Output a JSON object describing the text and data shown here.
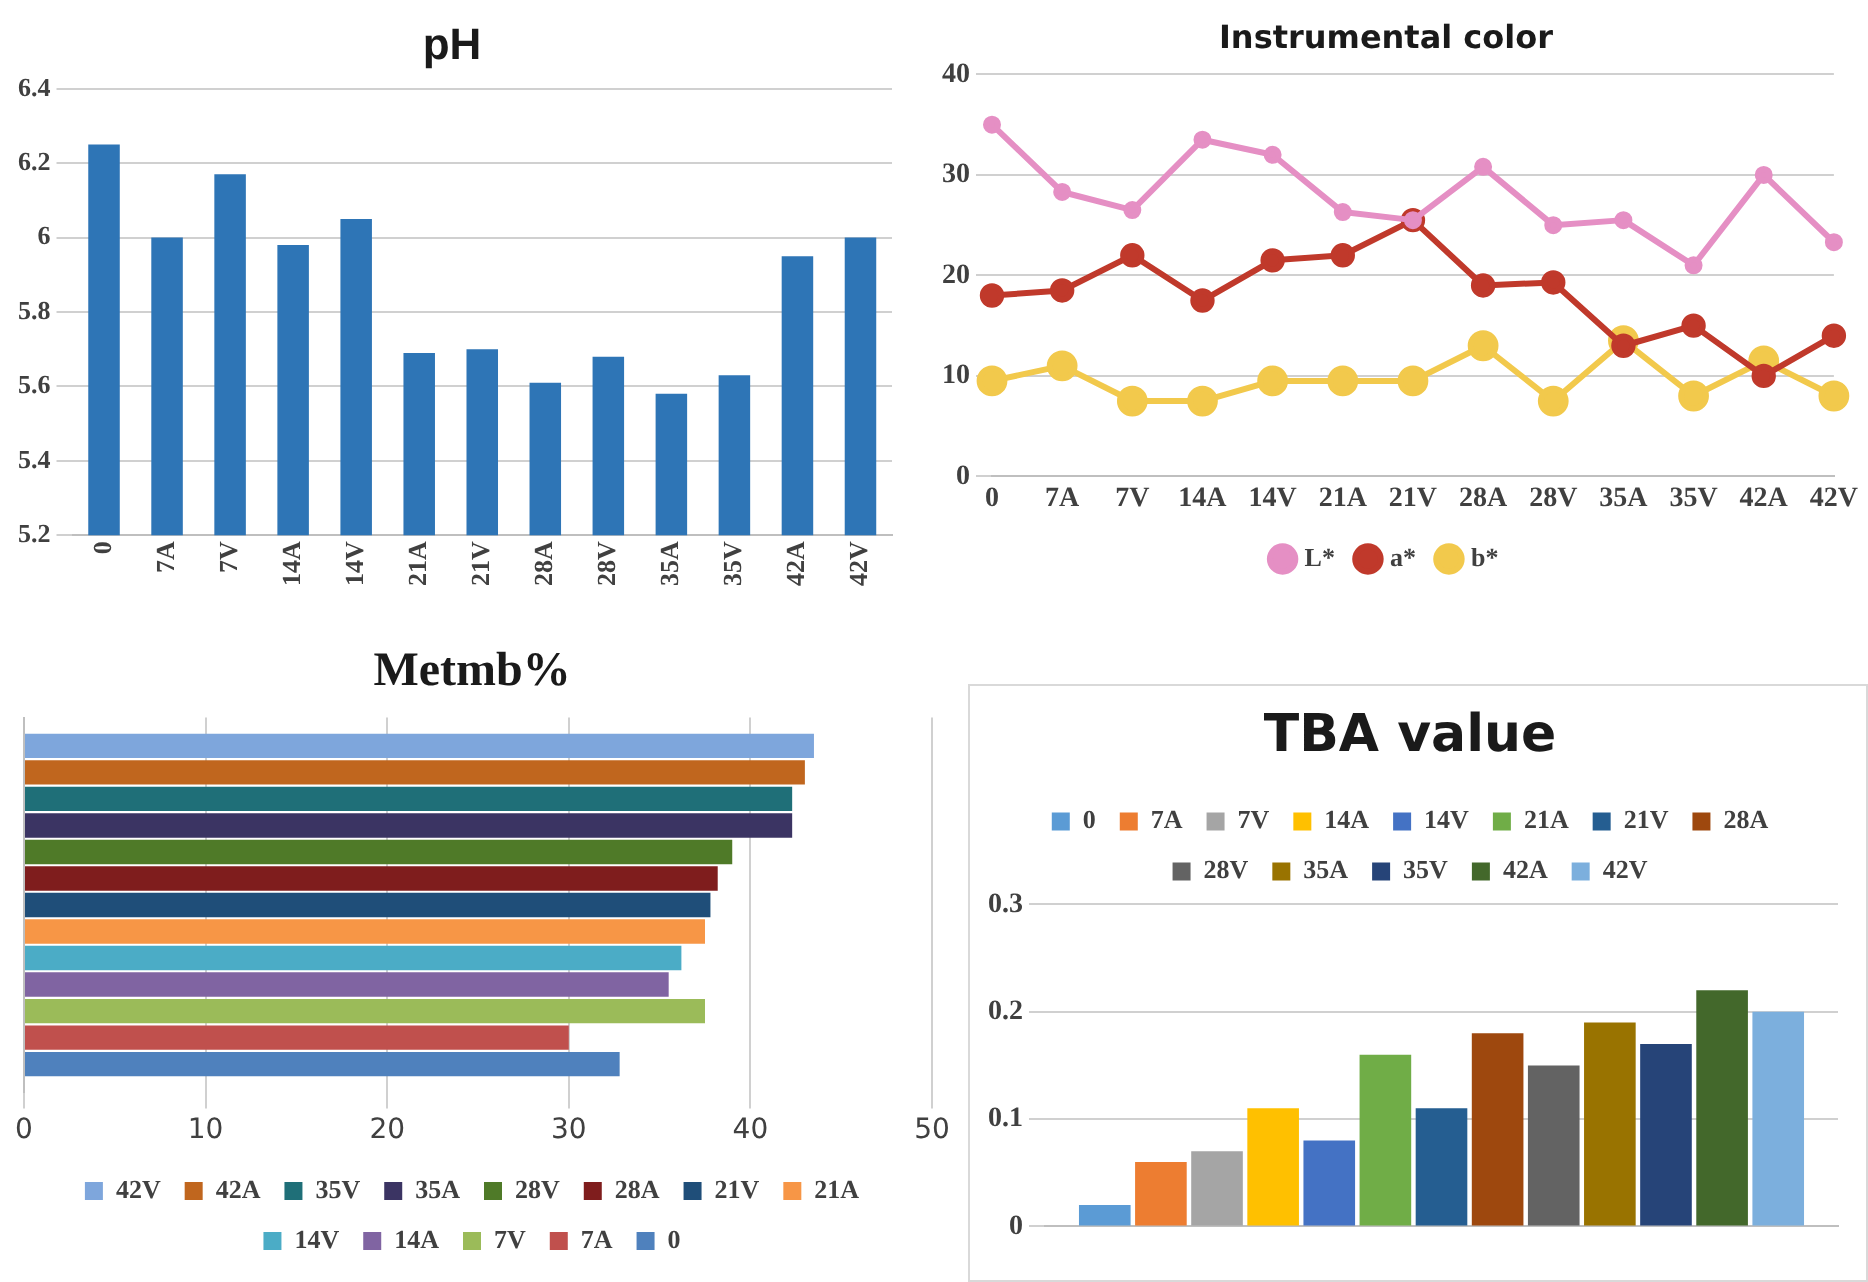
{
  "chart_data": [
    {
      "type": "bar",
      "title": "pH",
      "categories": [
        "0",
        "7A",
        "7V",
        "14A",
        "14V",
        "21A",
        "21V",
        "28A",
        "28V",
        "35A",
        "35V",
        "42A",
        "42V"
      ],
      "values": [
        6.25,
        6.0,
        6.17,
        5.98,
        6.05,
        5.69,
        5.7,
        5.61,
        5.68,
        5.58,
        5.63,
        5.95,
        6.0
      ],
      "color": "#2e75b6",
      "ylim": [
        5.2,
        6.4
      ],
      "yticks": [
        5.2,
        5.4,
        5.6,
        5.8,
        6,
        6.2,
        6.4
      ],
      "grid": "y",
      "legend": false
    },
    {
      "type": "line",
      "title": "Instrumental color",
      "categories": [
        "0",
        "7A",
        "7V",
        "14A",
        "14V",
        "21A",
        "21V",
        "28A",
        "28V",
        "35A",
        "35V",
        "42A",
        "42V"
      ],
      "series": [
        {
          "name": "L*",
          "color": "#e58fc4",
          "values": [
            35,
            28.3,
            26.5,
            33.5,
            32,
            26.3,
            25.5,
            30.8,
            25,
            25.5,
            21,
            30,
            23.3
          ]
        },
        {
          "name": "a*",
          "color": "#c0392b",
          "values": [
            18,
            18.5,
            22,
            17.5,
            21.5,
            22,
            25.5,
            19,
            19.3,
            13,
            15,
            10,
            14
          ]
        },
        {
          "name": "b*",
          "color": "#f2c94c",
          "values": [
            9.5,
            11,
            7.5,
            7.5,
            9.5,
            9.5,
            9.5,
            13,
            7.5,
            13.5,
            8,
            11.5,
            8
          ]
        }
      ],
      "ylim": [
        0,
        40
      ],
      "yticks": [
        0,
        10,
        20,
        30,
        40
      ],
      "grid": "y",
      "legend": "bottom",
      "marker": "circle"
    },
    {
      "type": "bar",
      "title": "Metmb%",
      "orientation": "horizontal",
      "categories": [
        null
      ],
      "series": [
        {
          "name": "42V",
          "color": "#7ea6dc",
          "values": [
            43.5
          ]
        },
        {
          "name": "42A",
          "color": "#c0661e",
          "values": [
            43
          ]
        },
        {
          "name": "35V",
          "color": "#1f6f78",
          "values": [
            42.3
          ]
        },
        {
          "name": "35A",
          "color": "#3b3463",
          "values": [
            42.3
          ]
        },
        {
          "name": "28V",
          "color": "#4f7a28",
          "values": [
            39
          ]
        },
        {
          "name": "28A",
          "color": "#7f1d1d",
          "values": [
            38.2
          ]
        },
        {
          "name": "21V",
          "color": "#1f4e79",
          "values": [
            37.8
          ]
        },
        {
          "name": "21A",
          "color": "#f79646",
          "values": [
            37.5
          ]
        },
        {
          "name": "14V",
          "color": "#4bacc6",
          "values": [
            36.2
          ]
        },
        {
          "name": "14A",
          "color": "#8064a2",
          "values": [
            35.5
          ]
        },
        {
          "name": "7V",
          "color": "#9bbb59",
          "values": [
            37.5
          ]
        },
        {
          "name": "7A",
          "color": "#c0504d",
          "values": [
            30
          ]
        },
        {
          "name": "0",
          "color": "#4f81bd",
          "values": [
            32.8
          ]
        }
      ],
      "xlim": [
        0,
        50
      ],
      "xticks": [
        0,
        10,
        20,
        30,
        40,
        50
      ],
      "grid": "x",
      "legend": "bottom"
    },
    {
      "type": "bar",
      "title": "TBA value",
      "categories": [
        null
      ],
      "series": [
        {
          "name": "0",
          "color": "#5b9bd5",
          "values": [
            0.02
          ]
        },
        {
          "name": "7A",
          "color": "#ed7d31",
          "values": [
            0.06
          ]
        },
        {
          "name": "7V",
          "color": "#a5a5a5",
          "values": [
            0.07
          ]
        },
        {
          "name": "14A",
          "color": "#ffc000",
          "values": [
            0.11
          ]
        },
        {
          "name": "14V",
          "color": "#4472c4",
          "values": [
            0.08
          ]
        },
        {
          "name": "21A",
          "color": "#70ad47",
          "values": [
            0.16
          ]
        },
        {
          "name": "21V",
          "color": "#255e91",
          "values": [
            0.11
          ]
        },
        {
          "name": "28A",
          "color": "#9e480e",
          "values": [
            0.18
          ]
        },
        {
          "name": "28V",
          "color": "#636363",
          "values": [
            0.15
          ]
        },
        {
          "name": "35A",
          "color": "#997300",
          "values": [
            0.19
          ]
        },
        {
          "name": "35V",
          "color": "#264478",
          "values": [
            0.17
          ]
        },
        {
          "name": "42A",
          "color": "#43682b",
          "values": [
            0.22
          ]
        },
        {
          "name": "42V",
          "color": "#7cafdd",
          "values": [
            0.2
          ]
        }
      ],
      "ylim": [
        0,
        0.3
      ],
      "yticks": [
        0,
        0.1,
        0.2,
        0.3
      ],
      "grid": "y",
      "legend": "top"
    }
  ]
}
